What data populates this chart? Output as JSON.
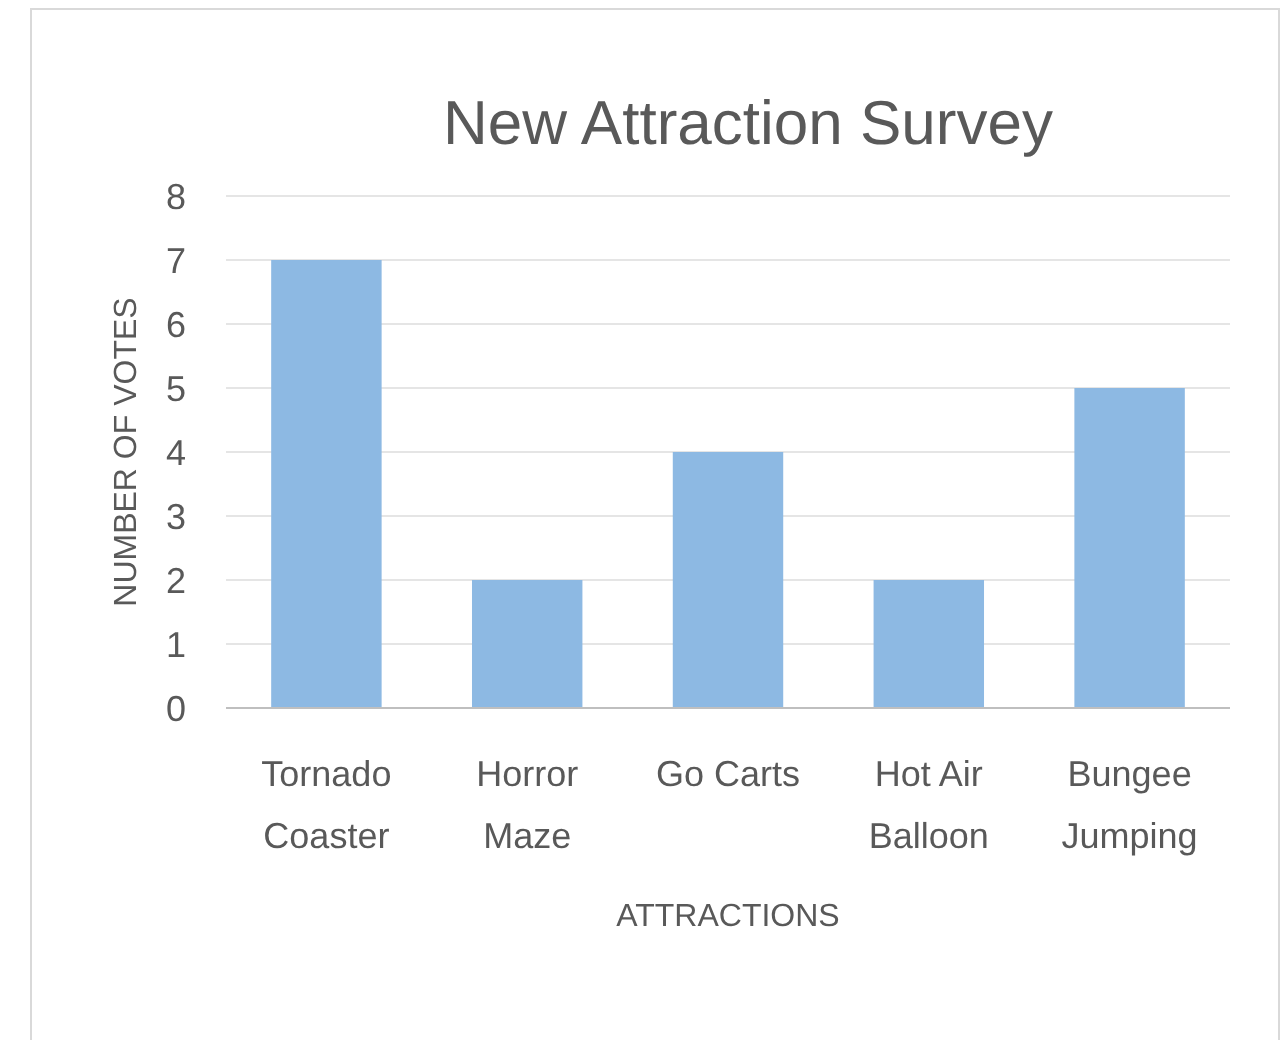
{
  "chart_data": {
    "type": "bar",
    "title": "New Attraction Survey",
    "xlabel": "ATTRACTIONS",
    "ylabel": "NUMBER OF VOTES",
    "categories": [
      "Tornado Coaster",
      "Horror Maze",
      "Go Carts",
      "Hot Air Balloon",
      "Bungee Jumping"
    ],
    "values": [
      7,
      2,
      4,
      2,
      5
    ],
    "color": "#8db9e3",
    "ylim": [
      0,
      8
    ],
    "yticks": [
      0,
      1,
      2,
      3,
      4,
      5,
      6,
      7,
      8
    ],
    "grid": "y"
  }
}
